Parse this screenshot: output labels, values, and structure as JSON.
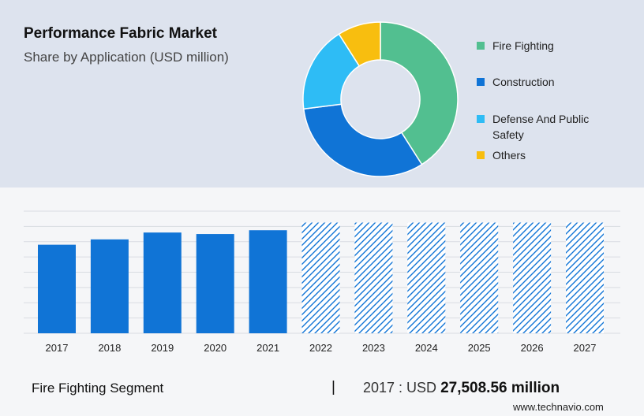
{
  "header": {
    "title": "Performance Fabric Market",
    "subtitle": "Share by Application (USD million)"
  },
  "footer": {
    "segment": "Fire Fighting Segment",
    "separator": "|",
    "value_prefix": "2017 : USD ",
    "value_amount": "27,508.56 million",
    "source": "www.technavio.com"
  },
  "chart_data": [
    {
      "type": "pie",
      "subtype": "donut",
      "legend_position": "right",
      "series": [
        {
          "name": "Fire Fighting",
          "value": 41,
          "color": "#52bf90"
        },
        {
          "name": "Construction",
          "value": 32,
          "color": "#1074d6"
        },
        {
          "name": "Defense And Public Safety",
          "value": 18,
          "color": "#2ebcf5"
        },
        {
          "name": "Others",
          "value": 9,
          "color": "#f8be0f"
        }
      ]
    },
    {
      "type": "bar",
      "categories": [
        "2017",
        "2018",
        "2019",
        "2020",
        "2021",
        "2022",
        "2023",
        "2024",
        "2025",
        "2026",
        "2027"
      ],
      "values": [
        5.8,
        6.15,
        6.6,
        6.5,
        6.75,
        7.25,
        7.25,
        7.25,
        7.25,
        7.25,
        7.25
      ],
      "forecast_from": "2022",
      "ylim": [
        0,
        8
      ],
      "grid": true,
      "solid_color": "#1074d6",
      "forecast_style": "hatched"
    }
  ]
}
